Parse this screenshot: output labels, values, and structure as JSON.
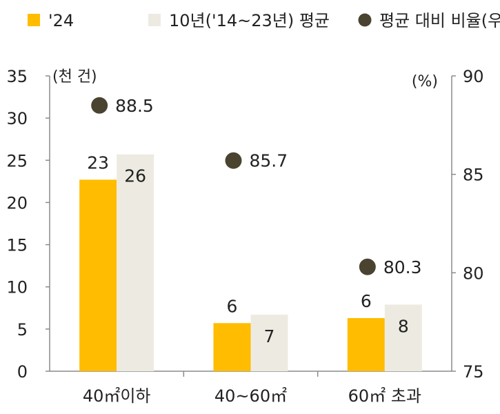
{
  "legend": [
    {
      "label": "'24",
      "color": "#FFBC00",
      "shape": "square"
    },
    {
      "label": "10년('14~23년) 평균",
      "color": "#EDEBE1",
      "shape": "square"
    },
    {
      "label": "평균 대비 비율(우)",
      "color": "#4A4330",
      "shape": "circle"
    }
  ],
  "chart_data": {
    "type": "bar",
    "categories": [
      "40㎡이하",
      "40~60㎡",
      "60㎡ 초과"
    ],
    "series": [
      {
        "name": "'24",
        "type": "bar",
        "axis": "left",
        "values": [
          23,
          6,
          6
        ],
        "actual": [
          22.7,
          5.7,
          6.3
        ],
        "color": "#FFBC00"
      },
      {
        "name": "10년('14~23년) 평균",
        "type": "bar",
        "axis": "left",
        "values": [
          26,
          7,
          8
        ],
        "actual": [
          25.7,
          6.7,
          7.9
        ],
        "color": "#EDEBE1"
      },
      {
        "name": "평균 대비 비율(우)",
        "type": "scatter",
        "axis": "right",
        "values": [
          88.5,
          85.7,
          80.3
        ],
        "color": "#4A4330"
      }
    ],
    "y_left": {
      "unit": "(천 건)",
      "ylim": [
        0,
        35
      ],
      "ticks": [
        "0",
        "5",
        "10",
        "15",
        "20",
        "25",
        "30",
        "35"
      ]
    },
    "y_right": {
      "unit": "(%)",
      "ylim": [
        75,
        90
      ],
      "ticks": [
        "75",
        "80",
        "85",
        "90"
      ]
    },
    "grid": false,
    "legend_position": "top"
  }
}
